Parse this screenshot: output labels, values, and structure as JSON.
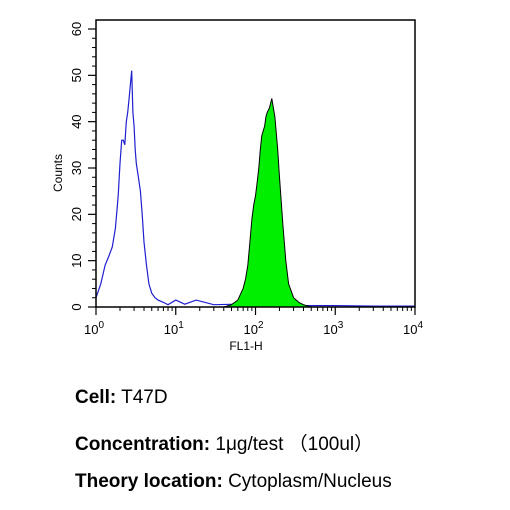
{
  "chart_data": {
    "type": "area",
    "xscale": "log",
    "xlim": [
      1,
      10000
    ],
    "ylim": [
      0,
      60
    ],
    "xlabel": "FL1-H",
    "ylabel": "Counts",
    "x_ticks": [
      {
        "base": "10",
        "exp": "0"
      },
      {
        "base": "10",
        "exp": "1"
      },
      {
        "base": "10",
        "exp": "2"
      },
      {
        "base": "10",
        "exp": "3"
      },
      {
        "base": "10",
        "exp": "4"
      }
    ],
    "y_ticks": [
      "0",
      "10",
      "20",
      "30",
      "40",
      "50",
      "60"
    ],
    "grid": false,
    "series": [
      {
        "style": "outline",
        "color": "#1f1fd0",
        "x": [
          1.0,
          1.15,
          1.3,
          1.45,
          1.6,
          1.75,
          1.9,
          2.0,
          2.1,
          2.2,
          2.3,
          2.4,
          2.5,
          2.6,
          2.7,
          2.8,
          2.9,
          3.0,
          3.1,
          3.2,
          3.4,
          3.6,
          3.8,
          4.0,
          4.3,
          4.6,
          5.0,
          5.5,
          6.0,
          7.0,
          8.0,
          10,
          13,
          18,
          30,
          60,
          100,
          200,
          400,
          1000,
          3000,
          10000
        ],
        "y": [
          2,
          5,
          9,
          11,
          13,
          17,
          24,
          31,
          36,
          36,
          35,
          40,
          42,
          45,
          48,
          51,
          42,
          39,
          34,
          31,
          28,
          25,
          20,
          14,
          9,
          5,
          3,
          2,
          1.5,
          1,
          0.5,
          1.5,
          0.6,
          1.5,
          0.5,
          0.6,
          0.5,
          0.3,
          0.3,
          0.3,
          0.2,
          0.2
        ]
      },
      {
        "style": "filled",
        "color": "#00ee00",
        "x": [
          1,
          20,
          40,
          50,
          60,
          70,
          75,
          80,
          85,
          90,
          95,
          100,
          105,
          110,
          115,
          120,
          125,
          130,
          135,
          140,
          150,
          160,
          175,
          190,
          200,
          220,
          240,
          260,
          300,
          350,
          400,
          500,
          1000,
          10000
        ],
        "y": [
          0,
          0,
          0,
          0.5,
          1.5,
          4,
          6,
          9,
          14,
          19,
          22,
          24,
          27,
          30,
          34,
          37,
          38,
          39,
          41,
          42,
          43,
          45,
          41,
          34,
          28,
          18,
          10,
          5,
          2,
          1,
          0.5,
          0,
          0,
          0
        ]
      }
    ]
  },
  "info": {
    "cell_label": "Cell:",
    "cell_value": "T47D",
    "concentration_label": "Concentration:",
    "concentration_value": "1μg/test （100ul）",
    "theory_label": "Theory location:",
    "theory_value": "Cytoplasm/Nucleus"
  }
}
